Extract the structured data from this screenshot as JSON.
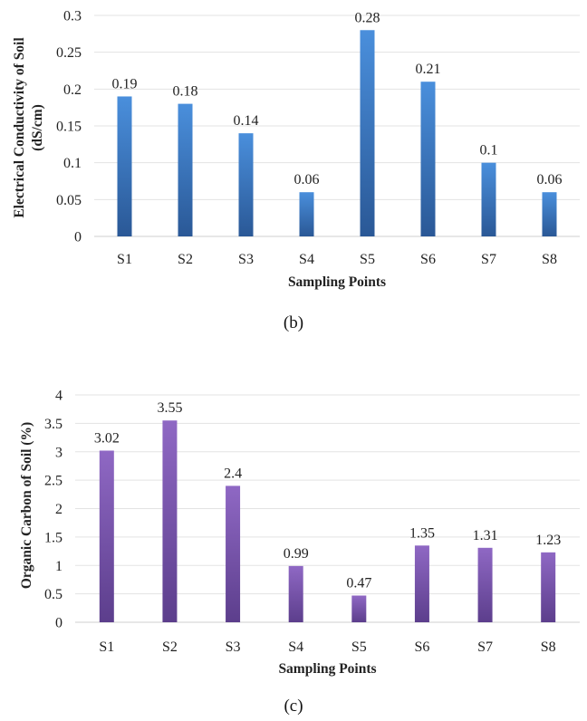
{
  "chart_data": [
    {
      "type": "bar",
      "categories": [
        "S1",
        "S2",
        "S3",
        "S4",
        "S5",
        "S6",
        "S7",
        "S8"
      ],
      "values": [
        0.19,
        0.18,
        0.14,
        0.06,
        0.28,
        0.21,
        0.1,
        0.06
      ],
      "value_labels": [
        "0.19",
        "0.18",
        "0.14",
        "0.06",
        "0.28",
        "0.21",
        "0.1",
        "0.06"
      ],
      "xlabel": "Sampling Points",
      "ylabel_lines": [
        "Electrical Conductivity of Soil",
        "(dS/cm)"
      ],
      "ylim": [
        0,
        0.3
      ],
      "yticks": [
        "0",
        "0.05",
        "0.1",
        "0.15",
        "0.2",
        "0.25",
        "0.3"
      ],
      "grid": true,
      "colors": {
        "top": "#4a8fdc",
        "bottom": "#2a5896"
      },
      "caption": "(b)"
    },
    {
      "type": "bar",
      "categories": [
        "S1",
        "S2",
        "S3",
        "S4",
        "S5",
        "S6",
        "S7",
        "S8"
      ],
      "values": [
        3.02,
        3.55,
        2.4,
        0.99,
        0.47,
        1.35,
        1.31,
        1.23
      ],
      "value_labels": [
        "3.02",
        "3.55",
        "2.4",
        "0.99",
        "0.47",
        "1.35",
        "1.31",
        "1.23"
      ],
      "xlabel": "Sampling Points",
      "ylabel_lines": [
        "Organic Carbon of Soil (%)"
      ],
      "ylim": [
        0,
        4
      ],
      "yticks": [
        "0",
        "0.5",
        "1",
        "1.5",
        "2",
        "2.5",
        "3",
        "3.5",
        "4"
      ],
      "grid": true,
      "colors": {
        "top": "#8f68c4",
        "bottom": "#5c3e8c"
      },
      "caption": "(c)"
    }
  ]
}
